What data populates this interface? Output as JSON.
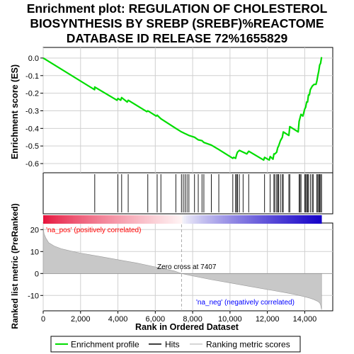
{
  "title_lines": [
    "Enrichment plot: REGULATION OF CHOLESTEROL",
    "BIOSYNTHESIS BY SREBP (SREBF)%REACTOME",
    "DATABASE ID RELEASE 72%1655829"
  ],
  "colors": {
    "es_line": "#00dd00",
    "hits": "#000000",
    "metric_fill": "#c8c8c8",
    "pos_label": "#ff0000",
    "neg_label": "#0000ff",
    "grid": "#d0d0d0"
  },
  "chart_data": [
    {
      "type": "line",
      "panel": "enrichment-score",
      "ylabel": "Enrichment score (ES)",
      "xlim": [
        0,
        15500
      ],
      "ylim": [
        -0.62,
        0.04
      ],
      "yticks": [
        0.0,
        -0.1,
        -0.2,
        -0.3,
        -0.4,
        -0.5,
        -0.6
      ],
      "ytick_labels": [
        "0.0",
        "-0.1",
        "-0.2",
        "-0.3",
        "-0.4",
        "-0.5",
        "-0.6"
      ],
      "series": [
        {
          "name": "Enrichment profile",
          "x": [
            0,
            2750,
            2760,
            3950,
            4000,
            4150,
            4200,
            4500,
            4550,
            5550,
            5600,
            6050,
            6100,
            6300,
            7100,
            7400,
            7500,
            7600,
            7700,
            7800,
            8100,
            8300,
            8500,
            8600,
            9000,
            9400,
            10150,
            10200,
            10300,
            10350,
            10400,
            10500,
            10700,
            10900,
            11000,
            11800,
            11850,
            12100,
            12150,
            12300,
            12350,
            12400,
            12500,
            12550,
            12600,
            12700,
            12800,
            12850,
            13150,
            13200,
            13650,
            13700,
            13800,
            13900,
            14000,
            14050,
            14100,
            14150,
            14200,
            14250,
            14300,
            14400,
            14500,
            14600,
            14650,
            14700,
            14750,
            14800,
            14850,
            14900
          ],
          "y": [
            0.0,
            -0.18,
            -0.165,
            -0.24,
            -0.23,
            -0.24,
            -0.225,
            -0.25,
            -0.24,
            -0.305,
            -0.3,
            -0.33,
            -0.325,
            -0.345,
            -0.4,
            -0.42,
            -0.425,
            -0.43,
            -0.435,
            -0.44,
            -0.45,
            -0.465,
            -0.47,
            -0.48,
            -0.495,
            -0.52,
            -0.57,
            -0.565,
            -0.57,
            -0.55,
            -0.535,
            -0.525,
            -0.535,
            -0.545,
            -0.53,
            -0.58,
            -0.565,
            -0.58,
            -0.56,
            -0.575,
            -0.545,
            -0.545,
            -0.535,
            -0.51,
            -0.5,
            -0.47,
            -0.45,
            -0.42,
            -0.44,
            -0.39,
            -0.42,
            -0.36,
            -0.32,
            -0.33,
            -0.29,
            -0.28,
            -0.25,
            -0.25,
            -0.21,
            -0.21,
            -0.18,
            -0.16,
            -0.15,
            -0.15,
            -0.13,
            -0.1,
            -0.075,
            -0.04,
            -0.03,
            0.005
          ]
        }
      ]
    },
    {
      "type": "scatter",
      "panel": "hits",
      "series": [
        {
          "name": "Hits",
          "x": [
            2760,
            4000,
            4200,
            4550,
            5600,
            6100,
            6300,
            7100,
            7400,
            7500,
            7600,
            7700,
            7800,
            8100,
            8300,
            8500,
            8600,
            9000,
            9400,
            10150,
            10300,
            10350,
            10400,
            10500,
            10700,
            11000,
            11850,
            12150,
            12350,
            12400,
            12500,
            12550,
            12600,
            12700,
            12800,
            12850,
            13150,
            13200,
            13700,
            13750,
            13800,
            14000,
            14050,
            14100,
            14150,
            14200,
            14300,
            14400,
            14450,
            14650,
            14700,
            14750,
            14800,
            14850,
            14900
          ]
        }
      ]
    },
    {
      "type": "area",
      "panel": "ranked-list-metric",
      "ylabel": "Ranked list metric (PreRanked)",
      "xlabel": "Rank in Ordered Dataset",
      "xlim": [
        0,
        15500
      ],
      "ylim": [
        -17,
        23
      ],
      "yticks": [
        20,
        10,
        0,
        -10
      ],
      "ytick_labels": [
        "20",
        "10",
        "0",
        "-10"
      ],
      "xticks": [
        0,
        2000,
        4000,
        6000,
        8000,
        10000,
        12000,
        14000
      ],
      "xtick_labels": [
        "0",
        "2,000",
        "4,000",
        "6,000",
        "8,000",
        "10,000",
        "12,000",
        "14,000"
      ],
      "series": [
        {
          "name": "Ranking metric scores",
          "x": [
            0,
            50,
            150,
            300,
            600,
            1000,
            1500,
            2000,
            3000,
            4000,
            5000,
            6000,
            7000,
            7407,
            8000,
            9000,
            10000,
            11000,
            12000,
            13000,
            13500,
            14000,
            14300,
            14500,
            14700,
            14800,
            14850,
            14900
          ],
          "y": [
            21,
            18,
            16,
            14,
            12.5,
            11.2,
            10.2,
            9.3,
            7.8,
            6.3,
            4.8,
            3.0,
            1.2,
            0,
            -1.1,
            -2.8,
            -4.3,
            -5.8,
            -7.3,
            -8.8,
            -9.6,
            -10.6,
            -11.3,
            -11.9,
            -12.7,
            -13.4,
            -14.3,
            -16.5
          ]
        }
      ],
      "annotations": {
        "zero_cross": "Zero cross at 7407",
        "zero_cross_x": 7407,
        "pos_label": "'na_pos' (positively correlated)",
        "neg_label": "'na_neg' (negatively correlated)"
      }
    }
  ],
  "legend": [
    {
      "label": "Enrichment profile",
      "icon": "green-line"
    },
    {
      "label": "Hits",
      "icon": "black-line"
    },
    {
      "label": "Ranking metric scores",
      "icon": "gray-line"
    }
  ]
}
